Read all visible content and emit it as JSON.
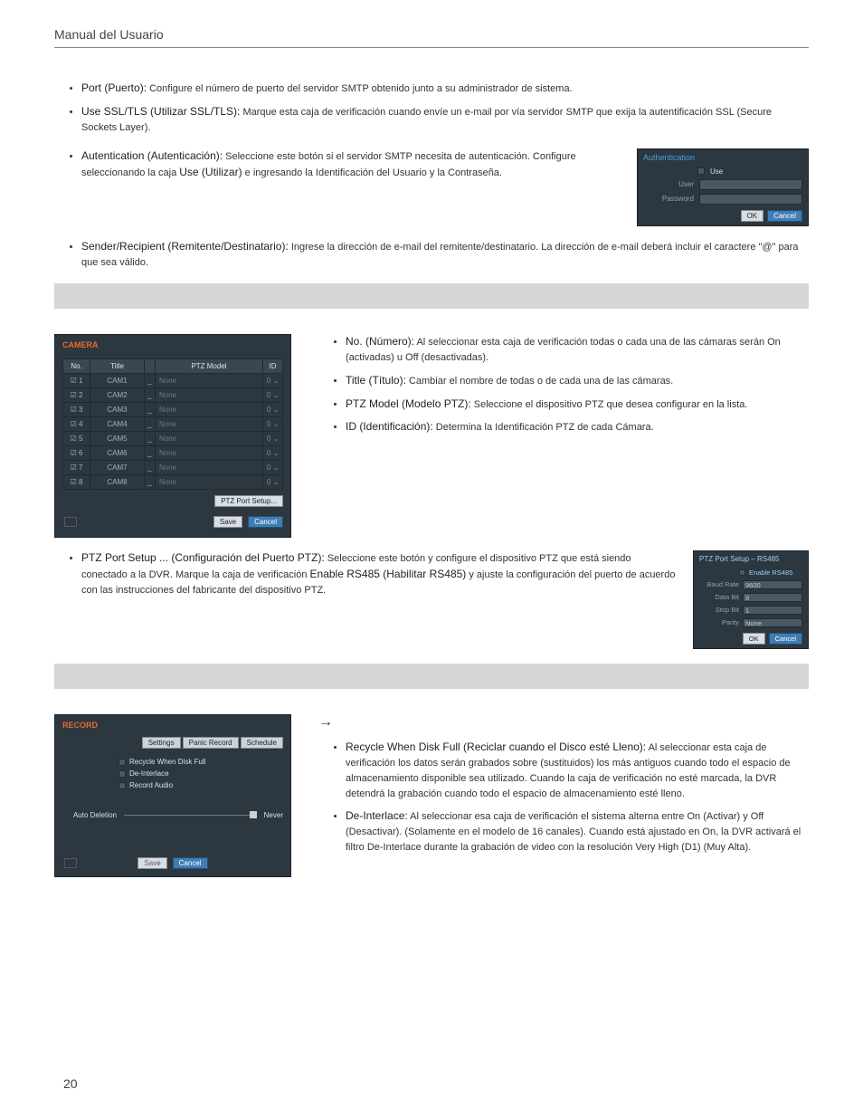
{
  "header": {
    "title": "Manual del Usuario"
  },
  "bullets1": [
    {
      "term": "Port (Puerto):",
      "desc": " Configure el número de puerto del servidor SMTP obtenido junto a su administrador de sistema."
    },
    {
      "term": "Use SSL/TLS (Utilizar SSL/TLS):",
      "desc": " Marque esta caja de verificación cuando envíe un e-mail por vía servidor SMTP que exija la autentificación SSL (Secure Sockets Layer)."
    }
  ],
  "auth_bullet": {
    "term": "Autentication (Autenticación):",
    "desc_a": " Seleccione este botón si el servidor SMTP necesita de autenticación. Configure seleccionando la caja ",
    "mid": "Use (Utilizar)",
    "desc_b": " e ingresando la Identificación del Usuario y la Contraseña."
  },
  "auth_panel": {
    "title": "Authentication",
    "use": "Use",
    "rows": [
      "User",
      "Password"
    ],
    "ok": "OK",
    "cancel": "Cancel"
  },
  "sender_bullet": {
    "term": "Sender/Recipient (Remitente/Destinatario):",
    "desc": " Ingrese la dirección de e-mail del remitente/destinatario. La dirección de e-mail deberá incluir el caractere \"@\" para que sea válido."
  },
  "camera_panel": {
    "title": "CAMERA",
    "cols": [
      "No.",
      "Title",
      "",
      "PTZ Model",
      "ID"
    ],
    "rows": [
      {
        "no": "1",
        "title": "CAM1",
        "model": "None",
        "id": "0"
      },
      {
        "no": "2",
        "title": "CAM2",
        "model": "None",
        "id": "0"
      },
      {
        "no": "3",
        "title": "CAM3",
        "model": "None",
        "id": "0"
      },
      {
        "no": "4",
        "title": "CAM4",
        "model": "None",
        "id": "0"
      },
      {
        "no": "5",
        "title": "CAM5",
        "model": "None",
        "id": "0"
      },
      {
        "no": "6",
        "title": "CAM6",
        "model": "None",
        "id": "0"
      },
      {
        "no": "7",
        "title": "CAM7",
        "model": "None",
        "id": "0"
      },
      {
        "no": "8",
        "title": "CAM8",
        "model": "None",
        "id": "0"
      }
    ],
    "ptz_btn": "PTZ Port Setup...",
    "save": "Save",
    "cancel": "Cancel"
  },
  "camera_bullets": [
    {
      "term": "No. (Número):",
      "desc": " Al seleccionar esta caja de verificación todas o cada una de las cámaras serán On (activadas) u Off (desactivadas)."
    },
    {
      "term": "Title (Título):",
      "desc": " Cambiar el nombre de todas o de cada una de las cámaras."
    },
    {
      "term": "PTZ Model (Modelo PTZ):",
      "desc": " Seleccione el dispositivo PTZ que desea configurar en la lista."
    },
    {
      "term": "ID (Identificación):",
      "desc": " Determina la Identificación PTZ de cada Cámara."
    }
  ],
  "ptz_setup_bullet": {
    "term": "PTZ Port Setup ... (Configuración del Puerto PTZ):",
    "desc_a": " Seleccione este botón y configure el dispositivo PTZ que está siendo conectado a la DVR. Marque la caja de verificación ",
    "mid": "Enable RS485 (Habilitar RS485)",
    "desc_b": " y ajuste la configuración del puerto de acuerdo con las instrucciones del fabricante del dispositivo PTZ."
  },
  "ptz_panel": {
    "title": "PTZ Port Setup – RS485",
    "enable": "Enable RS485",
    "rows": [
      {
        "lbl": "Baud Rate",
        "val": "9600"
      },
      {
        "lbl": "Data Bit",
        "val": "8"
      },
      {
        "lbl": "Stop Bit",
        "val": "1"
      },
      {
        "lbl": "Parity",
        "val": "None"
      }
    ],
    "ok": "OK",
    "cancel": "Cancel"
  },
  "arrow": "→",
  "record_panel": {
    "title": "RECORD",
    "tabs": [
      "Settings",
      "Panic Record",
      "Schedule"
    ],
    "opts": [
      "Recycle When Disk Full",
      "De-Interlace",
      "Record Audio"
    ],
    "autodel": "Auto Deletion",
    "never": "Never",
    "save": "Save",
    "cancel": "Cancel"
  },
  "record_bullets": [
    {
      "term": "Recycle When Disk Full (Reciclar cuando el Disco esté Lleno):",
      "desc": " Al seleccionar esta caja de verificación los datos serán grabados sobre (sustituidos) los más antiguos cuando todo el espacio de almacenamiento disponible sea utilizado. Cuando la caja de verificación no esté marcada, la DVR detendrá la grabación cuando todo el espacio de almacenamiento esté lleno."
    },
    {
      "term": "De-Interlace:",
      "desc": " Al seleccionar esa caja de verificación el sistema alterna entre On (Activar) y Off (Desactivar). (Solamente en el modelo de 16 canales). Cuando está ajustado en On, la DVR activará el filtro De-Interlace durante la grabación de video con la resolución Very High (D1) (Muy Alta)."
    }
  ],
  "page_number": "20"
}
